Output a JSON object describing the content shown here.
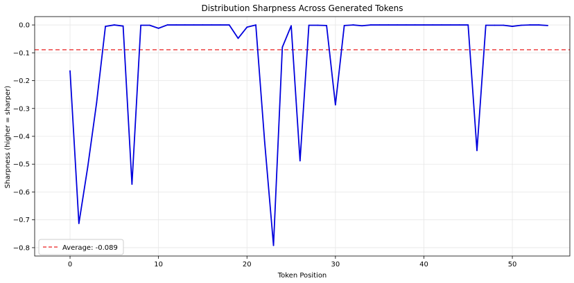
{
  "chart_data": {
    "type": "line",
    "title": "Distribution Sharpness Across Generated Tokens",
    "xlabel": "Token Position",
    "ylabel": "Sharpness (higher = sharper)",
    "xlim": [
      -4,
      56.5
    ],
    "ylim": [
      -0.83,
      0.03
    ],
    "x_ticks": [
      0,
      10,
      20,
      30,
      40,
      50
    ],
    "y_ticks": [
      0.0,
      -0.1,
      -0.2,
      -0.3,
      -0.4,
      -0.5,
      -0.6,
      -0.7,
      -0.8
    ],
    "y_tick_labels": [
      "0.0",
      "−0.1",
      "−0.2",
      "−0.3",
      "−0.4",
      "−0.5",
      "−0.6",
      "−0.7",
      "−0.8"
    ],
    "grid": true,
    "series": [
      {
        "color": "#0000dd",
        "x": [
          0,
          1,
          2,
          3,
          4,
          5,
          6,
          7,
          8,
          9,
          10,
          11,
          12,
          13,
          14,
          15,
          16,
          17,
          18,
          19,
          20,
          21,
          22,
          23,
          24,
          25,
          26,
          27,
          28,
          29,
          30,
          31,
          32,
          33,
          34,
          35,
          36,
          37,
          38,
          39,
          40,
          41,
          42,
          43,
          44,
          45,
          46,
          47,
          48,
          49,
          50,
          51,
          52,
          53,
          54
        ],
        "values": [
          -0.165,
          -0.713,
          -0.51,
          -0.28,
          -0.005,
          0.0,
          -0.004,
          -0.572,
          -0.001,
          -0.001,
          -0.012,
          0.0,
          0.0,
          0.0,
          0.0,
          0.0,
          0.0,
          0.0,
          0.0,
          -0.048,
          -0.008,
          0.0,
          -0.42,
          -0.792,
          -0.08,
          -0.003,
          -0.488,
          -0.001,
          -0.001,
          -0.002,
          -0.287,
          -0.002,
          0.0,
          -0.003,
          0.0,
          0.0,
          0.0,
          0.0,
          0.0,
          0.0,
          0.0,
          0.0,
          0.0,
          0.0,
          0.0,
          0.0,
          -0.451,
          -0.001,
          -0.001,
          -0.001,
          -0.005,
          -0.001,
          0.0,
          0.0,
          -0.002
        ]
      }
    ],
    "reference_line": {
      "value": -0.089,
      "style": "dashed",
      "color": "#ee4444"
    },
    "legend": {
      "placement": "lower-left",
      "entries": [
        "Average: -0.089"
      ]
    }
  }
}
